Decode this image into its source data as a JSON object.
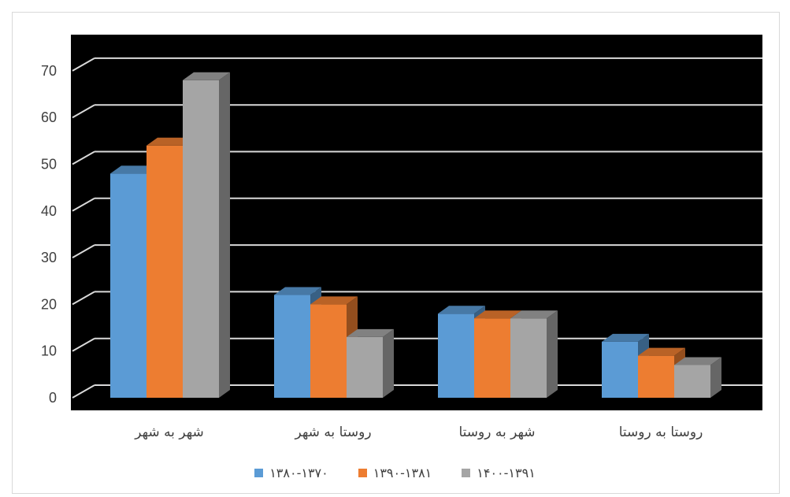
{
  "chart_data": {
    "type": "bar",
    "variant": "3d-clustered-column",
    "title": "",
    "xlabel": "",
    "ylabel": "",
    "ylim": [
      0,
      70
    ],
    "yticks": [
      0,
      10,
      20,
      30,
      40,
      50,
      60,
      70
    ],
    "grid": true,
    "legend_position": "bottom",
    "categories": [
      "شهر به شهر",
      "روستا به شهر",
      "شهر به روستا",
      "روستا به روستا"
    ],
    "series": [
      {
        "name": "۱۳۸۰-۱۳۷۰",
        "color": "#5b9bd5",
        "values": [
          48,
          22,
          18,
          12
        ]
      },
      {
        "name": "۱۳۹۰-۱۳۸۱",
        "color": "#ed7d31",
        "values": [
          54,
          20,
          17,
          9
        ]
      },
      {
        "name": "۱۴۰۰-۱۳۹۱",
        "color": "#a5a5a5",
        "values": [
          68,
          13,
          17,
          7
        ]
      }
    ],
    "colors": {
      "plot_background": "#000000",
      "gridline": "#d9d9d9",
      "text": "#404040"
    }
  }
}
